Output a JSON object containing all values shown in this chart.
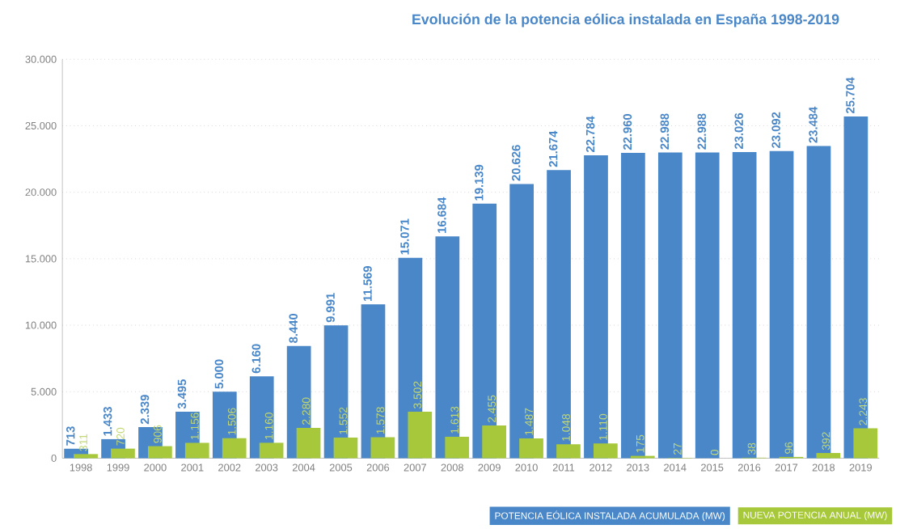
{
  "chart_data": {
    "type": "bar",
    "title": "Evolución de la potencia eólica instalada en España 1998-2019",
    "categories": [
      "1998",
      "1999",
      "2000",
      "2001",
      "2002",
      "2003",
      "2004",
      "2005",
      "2006",
      "2007",
      "2008",
      "2009",
      "2010",
      "2011",
      "2012",
      "2013",
      "2014",
      "2015",
      "2016",
      "2017",
      "2018",
      "2019"
    ],
    "series": [
      {
        "name": "POTENCIA EÓLICA INSTALADA ACUMULADA (MW)",
        "color": "#4a87c8",
        "values": [
          713,
          1433,
          2339,
          3495,
          5000,
          6160,
          8440,
          9991,
          11569,
          15071,
          16684,
          19139,
          20626,
          21674,
          22784,
          22960,
          22988,
          22988,
          23026,
          23092,
          23484,
          25704
        ],
        "value_labels": [
          "713",
          "1.433",
          "2.339",
          "3.495",
          "5.000",
          "6.160",
          "8.440",
          "9.991",
          "11.569",
          "15.071",
          "16.684",
          "19.139",
          "20.626",
          "21.674",
          "22.784",
          "22.960",
          "22.988",
          "22.988",
          "23.026",
          "23.092",
          "23.484",
          "25.704"
        ]
      },
      {
        "name": "NUEVA POTENCIA ANUAL (MW)",
        "color": "#a6c83a",
        "values": [
          311,
          720,
          906,
          1156,
          1506,
          1160,
          2280,
          1552,
          1578,
          3502,
          1613,
          2455,
          1487,
          1048,
          1110,
          175,
          27,
          0,
          38,
          96,
          392,
          2243
        ],
        "value_labels": [
          "311",
          "720",
          "906",
          "1.156",
          "1.506",
          "1.160",
          "2.280",
          "1.552",
          "1.578",
          "3.502",
          "1.613",
          "2.455",
          "1.487",
          "1.048",
          "1.110",
          "175",
          "27",
          "0",
          "38",
          "96",
          "392",
          "2.243"
        ]
      }
    ],
    "ylim": [
      0,
      30000
    ],
    "yticks": [
      {
        "value": 0,
        "label": "0"
      },
      {
        "value": 5000,
        "label": "5.000"
      },
      {
        "value": 10000,
        "label": "10.000"
      },
      {
        "value": 15000,
        "label": "15.000"
      },
      {
        "value": 20000,
        "label": "20.000"
      },
      {
        "value": 25000,
        "label": "25.000"
      },
      {
        "value": 30000,
        "label": "30.000"
      }
    ],
    "grid": "y",
    "legend": "bottom right"
  }
}
